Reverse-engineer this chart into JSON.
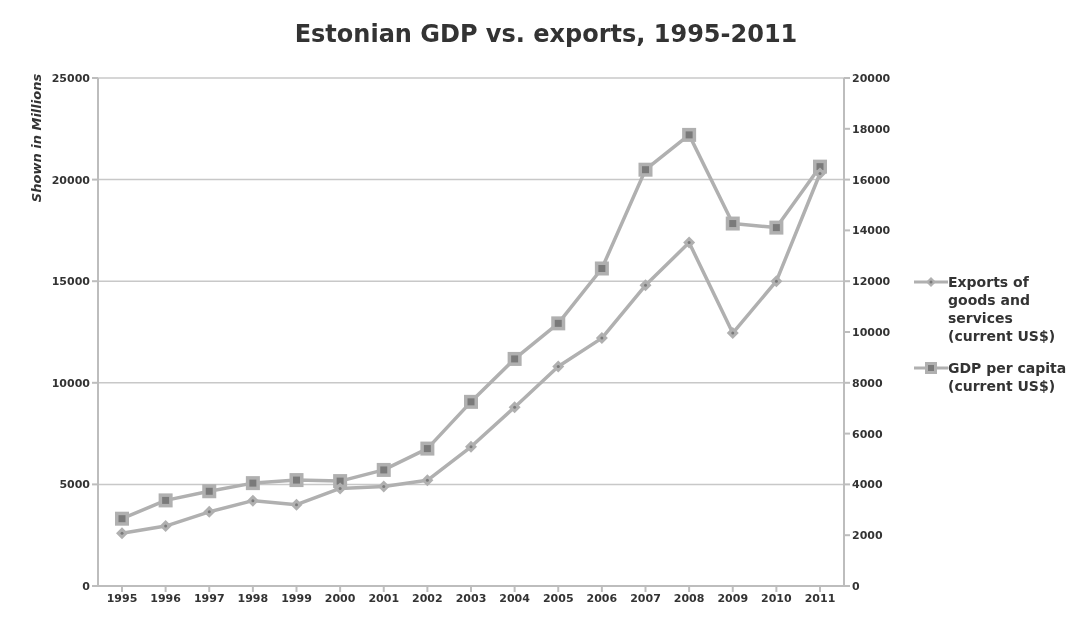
{
  "chart_data": {
    "type": "line",
    "title": "Estonian GDP vs. exports, 1995-2011",
    "ylabel": "Shown in Millions",
    "categories": [
      "1995",
      "1996",
      "1997",
      "1998",
      "1999",
      "2000",
      "2001",
      "2002",
      "2003",
      "2004",
      "2005",
      "2006",
      "2007",
      "2008",
      "2009",
      "2010",
      "2011"
    ],
    "series": [
      {
        "name": "Exports of goods and services (current US$)",
        "color": "#b0b0b0",
        "marker": "diamond",
        "values": [
          2600,
          2950,
          3650,
          4200,
          4000,
          4800,
          4900,
          5200,
          6850,
          8800,
          10800,
          12200,
          14800,
          16900,
          12450,
          15000,
          20300
        ]
      },
      {
        "name": "GDP per capita (current US$)",
        "color": "#b0b0b0",
        "marker": "square",
        "axis": "y2",
        "values": [
          2650,
          3370,
          3730,
          4050,
          4170,
          4130,
          4570,
          5410,
          7250,
          8940,
          10340,
          12500,
          16390,
          17760,
          14270,
          14110,
          16510
        ]
      }
    ],
    "ylim": [
      0,
      25000
    ],
    "yticks": [
      0,
      5000,
      10000,
      15000,
      20000,
      25000
    ],
    "y2lim": [
      0,
      20000
    ],
    "y2ticks": [
      0,
      2000,
      4000,
      6000,
      8000,
      10000,
      12000,
      14000,
      16000,
      18000,
      20000
    ],
    "grid": "y",
    "legend": "right"
  }
}
